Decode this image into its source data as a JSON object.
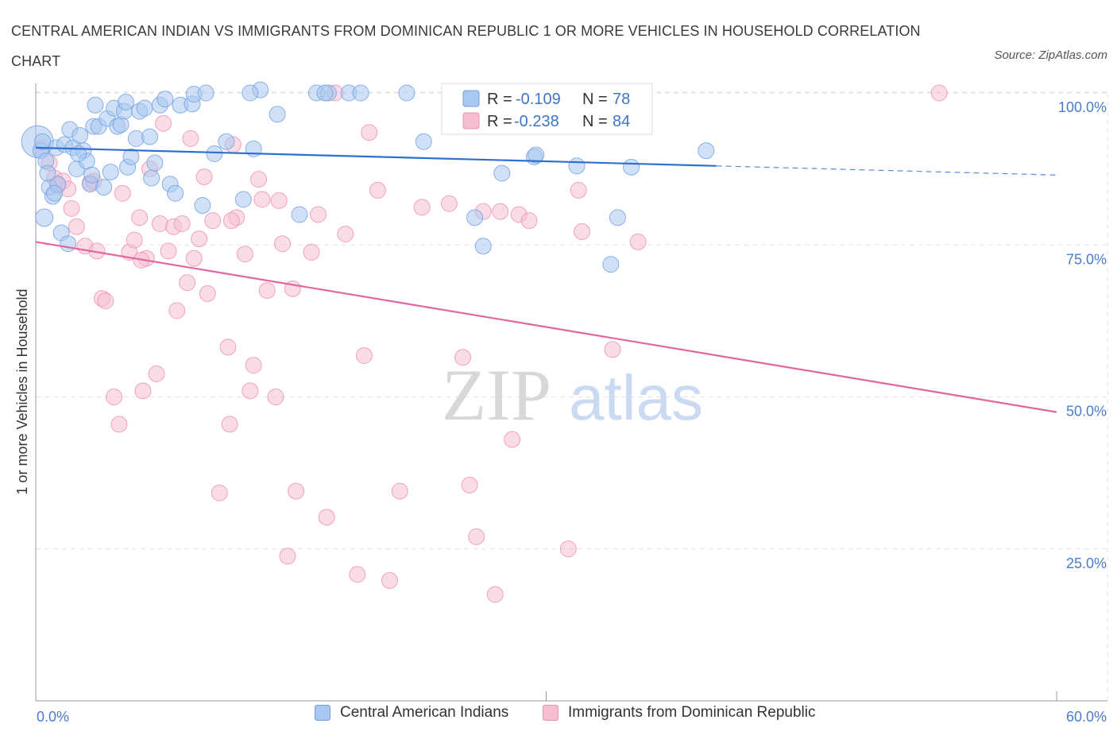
{
  "title": "CENTRAL AMERICAN INDIAN VS IMMIGRANTS FROM DOMINICAN REPUBLIC 1 OR MORE VEHICLES IN HOUSEHOLD CORRELATION CHART",
  "source": "Source: ZipAtlas.com",
  "watermark": {
    "zip": "ZIP",
    "atlas": "atlas"
  },
  "legend_top": {
    "rows": [
      {
        "r_label": "R =",
        "r_value": "-0.109",
        "n_label": "N =",
        "n_value": "78"
      },
      {
        "r_label": "R =",
        "r_value": "-0.238",
        "n_label": "N =",
        "n_value": "84"
      }
    ]
  },
  "legend_bottom": {
    "series1": "Central American Indians",
    "series2": "Immigrants from Dominican Republic"
  },
  "colors": {
    "blue_fill": "#a9c8f0",
    "blue_stroke": "#6f9fe0",
    "blue_line": "#2f6fcf",
    "pink_fill": "#f6bfd1",
    "pink_stroke": "#ec8fb0",
    "pink_line": "#e0689a",
    "tick_text": "#4a7cc9",
    "grid": "#e3e3e3"
  },
  "chart_data": {
    "type": "scatter",
    "title": "CENTRAL AMERICAN INDIAN VS IMMIGRANTS FROM DOMINICAN REPUBLIC 1 OR MORE VEHICLES IN HOUSEHOLD CORRELATION CHART",
    "xlabel": "",
    "ylabel": "1 or more Vehicles in Household",
    "xlim": [
      0,
      60
    ],
    "ylim": [
      0,
      100
    ],
    "x_ticks": [
      "0.0%",
      "60.0%"
    ],
    "y_ticks": [
      {
        "value": 100,
        "label": "100.0%"
      },
      {
        "value": 75,
        "label": "75.0%"
      },
      {
        "value": 50,
        "label": "50.0%"
      },
      {
        "value": 25,
        "label": "25.0%"
      }
    ],
    "grid": true,
    "legend_position": "top-center",
    "series": [
      {
        "name": "Central American Indians",
        "color": "#6f9fe0",
        "r": -0.109,
        "n": 78,
        "trend": {
          "x0": 0,
          "y0": 91.0,
          "x1": 40.0,
          "y1": 88.0,
          "dashed_to_x": 60,
          "dashed_to_y": 86.5
        },
        "points": [
          [
            0.1,
            92,
            "L"
          ],
          [
            0.3,
            90.5
          ],
          [
            0.5,
            79.5,
            "M"
          ],
          [
            0.6,
            88.8
          ],
          [
            0.8,
            84.5
          ],
          [
            1.0,
            83
          ],
          [
            1.2,
            91
          ],
          [
            1.3,
            85
          ],
          [
            1.5,
            77
          ],
          [
            1.7,
            91.5
          ],
          [
            1.9,
            75.2
          ],
          [
            2.0,
            94
          ],
          [
            2.2,
            91
          ],
          [
            2.4,
            87.5
          ],
          [
            2.6,
            93
          ],
          [
            2.8,
            90.5
          ],
          [
            3.0,
            88.8
          ],
          [
            3.2,
            85
          ],
          [
            3.4,
            94.5
          ],
          [
            3.5,
            98
          ],
          [
            3.7,
            94.5
          ],
          [
            4.0,
            84.5
          ],
          [
            4.2,
            95.8
          ],
          [
            4.4,
            87
          ],
          [
            4.6,
            97.5
          ],
          [
            4.8,
            94.5
          ],
          [
            5.0,
            94.8
          ],
          [
            5.2,
            97
          ],
          [
            5.4,
            87.8
          ],
          [
            5.6,
            89.5
          ],
          [
            5.9,
            92.5
          ],
          [
            6.1,
            97
          ],
          [
            6.4,
            97.5
          ],
          [
            6.7,
            92.8
          ],
          [
            6.8,
            86
          ],
          [
            7.0,
            88.5
          ],
          [
            7.3,
            98
          ],
          [
            7.6,
            99
          ],
          [
            7.9,
            85
          ],
          [
            8.2,
            83.5
          ],
          [
            8.5,
            98
          ],
          [
            9.2,
            98.2
          ],
          [
            9.8,
            81.5
          ],
          [
            10.5,
            90
          ],
          [
            11.2,
            92
          ],
          [
            12.2,
            82.5
          ],
          [
            12.8,
            90.8
          ],
          [
            13.2,
            100.5
          ],
          [
            14.2,
            96.5
          ],
          [
            15.5,
            80
          ],
          [
            16.5,
            100
          ],
          [
            17.2,
            100
          ],
          [
            18.4,
            100
          ],
          [
            19.1,
            100
          ],
          [
            21.8,
            100
          ],
          [
            22.8,
            92
          ],
          [
            25.8,
            79.5
          ],
          [
            26.3,
            74.8
          ],
          [
            27.4,
            86.8
          ],
          [
            29.3,
            89.5
          ],
          [
            29.4,
            89.8
          ],
          [
            31.8,
            88
          ],
          [
            33.8,
            71.8
          ],
          [
            34.2,
            79.5
          ],
          [
            35.0,
            87.8
          ],
          [
            39.4,
            90.5
          ],
          [
            0.4,
            92
          ],
          [
            0.7,
            86.8
          ],
          [
            1.1,
            83.5
          ],
          [
            2.5,
            90
          ],
          [
            3.3,
            86.5
          ],
          [
            5.3,
            98.5
          ],
          [
            9.3,
            99.8
          ],
          [
            10.0,
            100
          ],
          [
            12.6,
            100
          ],
          [
            17.0,
            100
          ]
        ]
      },
      {
        "name": "Immigrants from Dominican Republic",
        "color": "#ec8fb0",
        "r": -0.238,
        "n": 84,
        "trend": {
          "x0": 0,
          "y0": 75.5,
          "x1": 60,
          "y1": 47.5
        },
        "points": [
          [
            0.4,
            91
          ],
          [
            0.8,
            88.5
          ],
          [
            1.1,
            86
          ],
          [
            1.3,
            84.8
          ],
          [
            1.6,
            85.5
          ],
          [
            2.1,
            81
          ],
          [
            2.4,
            78
          ],
          [
            2.9,
            74.8
          ],
          [
            3.2,
            85.2
          ],
          [
            3.6,
            74
          ],
          [
            3.9,
            66.2
          ],
          [
            4.1,
            65.8
          ],
          [
            4.6,
            50
          ],
          [
            4.9,
            45.5
          ],
          [
            5.1,
            83.5
          ],
          [
            5.5,
            73.8
          ],
          [
            5.8,
            75.8
          ],
          [
            6.1,
            79.5
          ],
          [
            6.3,
            51
          ],
          [
            6.5,
            72.8
          ],
          [
            6.7,
            87.5
          ],
          [
            7.1,
            53.8
          ],
          [
            7.3,
            78.5
          ],
          [
            7.5,
            95
          ],
          [
            7.8,
            74
          ],
          [
            8.1,
            78
          ],
          [
            8.3,
            64.2
          ],
          [
            8.6,
            78.5
          ],
          [
            8.9,
            68.8
          ],
          [
            9.1,
            92.5
          ],
          [
            9.3,
            72.8
          ],
          [
            9.6,
            76
          ],
          [
            10.1,
            67
          ],
          [
            10.4,
            79
          ],
          [
            10.8,
            34.2
          ],
          [
            11.3,
            58.2
          ],
          [
            11.4,
            45.5
          ],
          [
            11.6,
            91.5
          ],
          [
            11.8,
            79.5
          ],
          [
            12.3,
            73.5
          ],
          [
            12.6,
            51
          ],
          [
            12.8,
            55.2
          ],
          [
            13.1,
            85.8
          ],
          [
            13.3,
            82.5
          ],
          [
            13.6,
            67.5
          ],
          [
            14.1,
            50
          ],
          [
            14.5,
            75.2
          ],
          [
            14.8,
            23.8
          ],
          [
            15.1,
            67.8
          ],
          [
            15.3,
            34.5
          ],
          [
            16.2,
            73.8
          ],
          [
            16.6,
            80
          ],
          [
            17.1,
            30.2
          ],
          [
            17.6,
            100
          ],
          [
            18.2,
            76.8
          ],
          [
            18.9,
            20.8
          ],
          [
            19.3,
            56.8
          ],
          [
            19.6,
            93.5
          ],
          [
            20.1,
            84
          ],
          [
            20.8,
            19.8
          ],
          [
            21.4,
            34.5
          ],
          [
            22.7,
            81.2
          ],
          [
            24.3,
            81.8
          ],
          [
            25.1,
            56.5
          ],
          [
            25.5,
            35.5
          ],
          [
            25.9,
            27
          ],
          [
            26.3,
            80.5
          ],
          [
            27.0,
            17.5
          ],
          [
            27.3,
            80.5
          ],
          [
            28.0,
            43
          ],
          [
            28.4,
            80
          ],
          [
            29.0,
            79
          ],
          [
            31.3,
            25
          ],
          [
            31.9,
            84
          ],
          [
            32.1,
            77.2
          ],
          [
            33.9,
            57.8
          ],
          [
            35.4,
            75.5
          ],
          [
            53.1,
            100
          ],
          [
            9.9,
            86.2
          ],
          [
            14.3,
            82.3
          ],
          [
            1.9,
            84.2
          ],
          [
            3.4,
            85.5
          ],
          [
            6.2,
            72.5
          ],
          [
            11.5,
            79.0
          ]
        ]
      }
    ]
  }
}
